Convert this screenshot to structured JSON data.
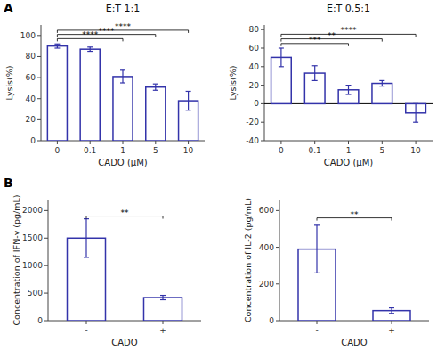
{
  "chart_data": [
    {
      "type": "bar",
      "panel_label": "A",
      "title": "E:T 1:1",
      "xlabel": "CADO (μM)",
      "ylabel": "Lysis(%)",
      "categories": [
        "0",
        "0.1",
        "1",
        "5",
        "10"
      ],
      "values": [
        90,
        87,
        61,
        51,
        38
      ],
      "errors": [
        2,
        2,
        6,
        3,
        9
      ],
      "color": "#3333aa",
      "ylim": [
        0,
        110
      ],
      "yticks": [
        0,
        20,
        40,
        60,
        80,
        100
      ],
      "annotations": [
        {
          "label": "****",
          "from": 0,
          "to": 2,
          "y": 97
        },
        {
          "label": "****",
          "from": 0,
          "to": 3,
          "y": 101
        },
        {
          "label": "****",
          "from": 0,
          "to": 4,
          "y": 105
        }
      ]
    },
    {
      "type": "bar",
      "title": "E:T 0.5:1",
      "xlabel": "CADO (μM)",
      "ylabel": "Lysis(%)",
      "categories": [
        "0",
        "0.1",
        "1",
        "5",
        "10"
      ],
      "values": [
        50,
        33,
        15,
        22,
        -10
      ],
      "errors": [
        10,
        8,
        5,
        3,
        10
      ],
      "color": "#3333aa",
      "ylim": [
        -40,
        85
      ],
      "yticks": [
        -40,
        -20,
        0,
        20,
        40,
        60,
        80
      ],
      "annotations": [
        {
          "label": "***",
          "from": 0,
          "to": 2,
          "y": 65
        },
        {
          "label": "**",
          "from": 0,
          "to": 3,
          "y": 70
        },
        {
          "label": "****",
          "from": 0,
          "to": 4,
          "y": 75
        }
      ]
    },
    {
      "type": "bar",
      "panel_label": "B",
      "xlabel": "CADO",
      "ylabel": "Concentration of IFN-γ (pg/mL)",
      "categories": [
        "-",
        "+"
      ],
      "values": [
        1500,
        420
      ],
      "errors": [
        350,
        40
      ],
      "color": "#3333aa",
      "ylim": [
        0,
        2200
      ],
      "yticks": [
        0,
        500,
        1000,
        1500,
        2000
      ],
      "annotations": [
        {
          "label": "**",
          "from": 0,
          "to": 1,
          "y": 1900
        }
      ]
    },
    {
      "type": "bar",
      "xlabel": "CADO",
      "ylabel": "Concentration of IL-2 (pg/mL)",
      "categories": [
        "-",
        "+"
      ],
      "values": [
        390,
        55
      ],
      "errors": [
        130,
        15
      ],
      "color": "#3333aa",
      "ylim": [
        0,
        660
      ],
      "yticks": [
        0,
        200,
        400,
        600
      ],
      "annotations": [
        {
          "label": "**",
          "from": 0,
          "to": 1,
          "y": 560
        }
      ]
    }
  ]
}
